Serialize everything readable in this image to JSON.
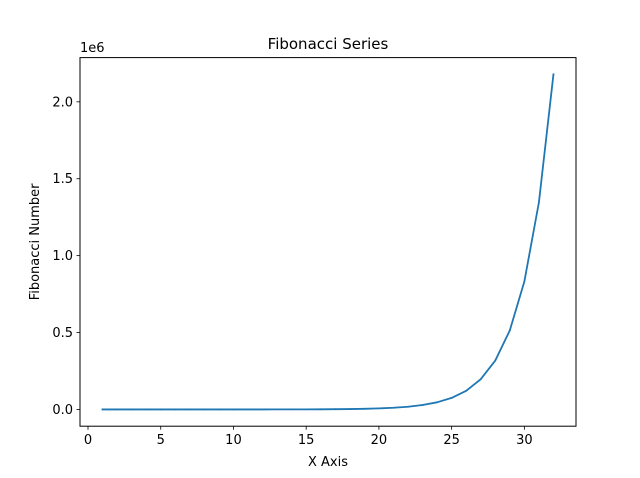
{
  "chart_data": {
    "type": "line",
    "title": "Fibonacci Series",
    "xlabel": "X Axis",
    "ylabel": "Fibonacci Number",
    "y_offset_label": "1e6",
    "xlim": [
      -0.55,
      33.55
    ],
    "ylim": [
      -108932.3,
      2287586.3
    ],
    "grid": false,
    "x_ticks": [
      0,
      5,
      10,
      15,
      20,
      25,
      30
    ],
    "x_tick_labels": [
      "0",
      "5",
      "10",
      "15",
      "20",
      "25",
      "30"
    ],
    "y_ticks": [
      0,
      500000,
      1000000,
      1500000,
      2000000
    ],
    "y_tick_labels": [
      "0.0",
      "0.5",
      "1.0",
      "1.5",
      "2.0"
    ],
    "series": [
      {
        "color": "#1f77b4",
        "x": [
          1,
          2,
          3,
          4,
          5,
          6,
          7,
          8,
          9,
          10,
          11,
          12,
          13,
          14,
          15,
          16,
          17,
          18,
          19,
          20,
          21,
          22,
          23,
          24,
          25,
          26,
          27,
          28,
          29,
          30,
          31,
          32
        ],
        "values": [
          1,
          1,
          2,
          3,
          5,
          8,
          13,
          21,
          34,
          55,
          89,
          144,
          233,
          377,
          610,
          987,
          1597,
          2584,
          4181,
          6765,
          10946,
          17711,
          28657,
          46368,
          75025,
          121393,
          196418,
          317811,
          514229,
          832040,
          1346269,
          2178309
        ]
      }
    ]
  }
}
